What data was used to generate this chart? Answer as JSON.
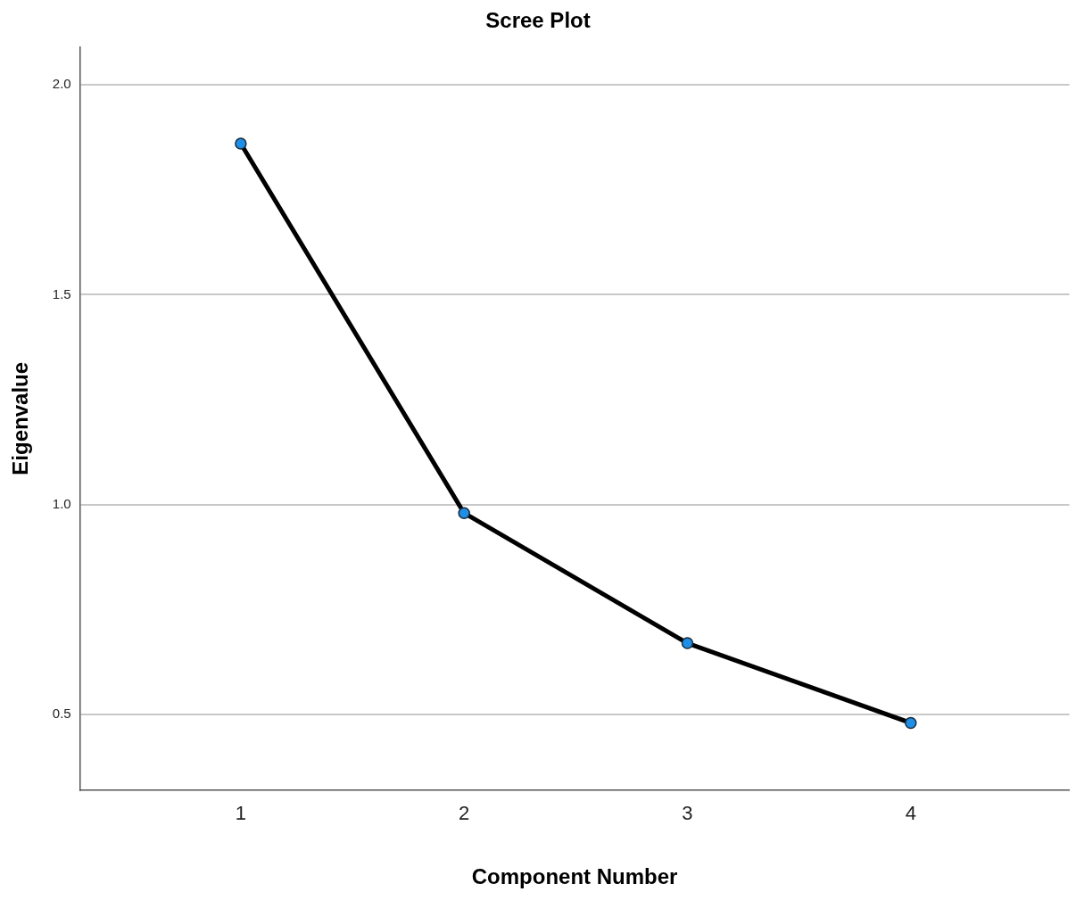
{
  "chart_data": {
    "type": "line",
    "title": "Scree Plot",
    "xlabel": "Component Number",
    "ylabel": "Eigenvalue",
    "x": [
      1,
      2,
      3,
      4
    ],
    "series": [
      {
        "color": "#000000",
        "colors": [
          "#1f8ee6",
          "#1f8ee6",
          "#1f8ee6",
          "#1f8ee6"
        ],
        "values": [
          1.86,
          0.98,
          0.67,
          0.48
        ]
      }
    ],
    "xlim": [
      0.28,
      4.71
    ],
    "xticks": [
      1,
      2,
      3,
      4
    ],
    "ylim": [
      0.32,
      2.09
    ],
    "yticks": [
      {
        "value": 0.5,
        "label": "0.5"
      },
      {
        "value": 1,
        "label": "1.0"
      },
      {
        "value": 1.5,
        "label": "1.5"
      },
      {
        "value": 2,
        "label": "2.0"
      }
    ],
    "grid": "y",
    "marker": "circle",
    "line_style": "solid"
  }
}
